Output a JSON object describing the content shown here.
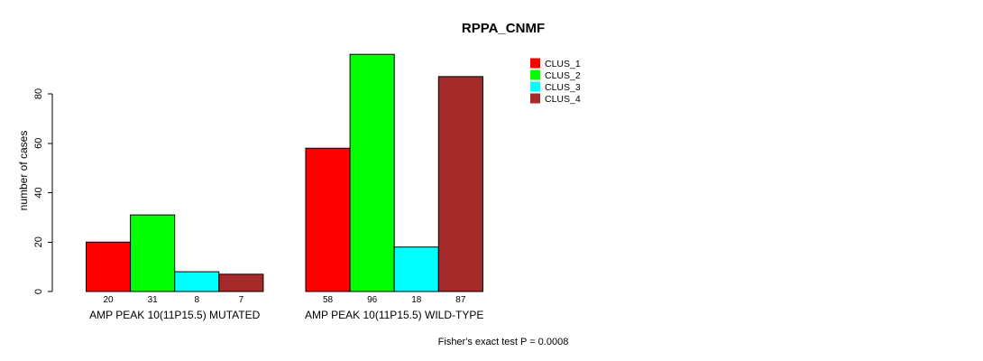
{
  "chart_data": {
    "type": "bar",
    "title": "RPPA_CNMF",
    "ylabel": "number of cases",
    "xlabel": "",
    "ylim": [
      0,
      96
    ],
    "yticks": [
      0,
      20,
      40,
      60,
      80
    ],
    "grid": false,
    "bar_value_labels": true,
    "categories": [
      "AMP PEAK 10(11P15.5) MUTATED",
      "AMP PEAK 10(11P15.5) WILD-TYPE"
    ],
    "series": [
      {
        "name": "CLUS_1",
        "color": "#FF0000",
        "values": [
          20,
          58
        ]
      },
      {
        "name": "CLUS_2",
        "color": "#00FF00",
        "values": [
          31,
          96
        ]
      },
      {
        "name": "CLUS_3",
        "color": "#00FFFF",
        "values": [
          8,
          18
        ]
      },
      {
        "name": "CLUS_4",
        "color": "#A52A2A",
        "values": [
          7,
          87
        ]
      }
    ],
    "legend_position": "top-right",
    "annotation": "Fisher's exact test P = 0.0008"
  },
  "colors": {
    "background": "#FFFFFF",
    "axis": "#000000",
    "bar_border": "#000000"
  }
}
